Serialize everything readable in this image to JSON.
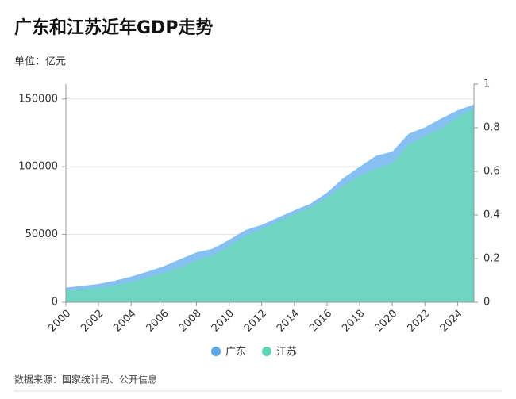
{
  "chart_data": {
    "type": "area",
    "title": "广东和江苏近年GDP走势",
    "subtitle": "单位：亿元",
    "source": "数据来源：国家统计局、公开信息",
    "x": [
      2000,
      2001,
      2002,
      2003,
      2004,
      2005,
      2006,
      2007,
      2008,
      2009,
      2010,
      2011,
      2012,
      2013,
      2014,
      2015,
      2016,
      2017,
      2018,
      2019,
      2020,
      2021,
      2022,
      2023,
      2024,
      2025
    ],
    "series": [
      {
        "name": "广东",
        "color": "#86c0f2",
        "legend_color": "#5aa7e8",
        "values": [
          10741,
          12039,
          13502,
          15845,
          18865,
          22557,
          26588,
          31777,
          36797,
          39483,
          46013,
          53210,
          57068,
          62475,
          67810,
          72813,
          80855,
          91649,
          99945,
          107987,
          111152,
          124370,
          129119,
          135673,
          141634,
          146000
        ]
      },
      {
        "name": "江苏",
        "color": "#6fd5c2",
        "legend_color": "#5fd3b3",
        "values": [
          8554,
          9457,
          10607,
          12443,
          15004,
          18306,
          21645,
          25741,
          30982,
          34457,
          41425,
          49110,
          54058,
          59753,
          65088,
          70116,
          77388,
          85870,
          93208,
          98656,
          102719,
          116364,
          122875,
          128222,
          137008,
          143000
        ]
      }
    ],
    "xlim": [
      2000,
      2025
    ],
    "xticks": [
      2000,
      2002,
      2004,
      2006,
      2008,
      2010,
      2012,
      2014,
      2016,
      2018,
      2020,
      2022,
      2024
    ],
    "ylim": [
      0,
      161000
    ],
    "yticks": [
      0,
      50000,
      100000,
      150000
    ],
    "y2lim": [
      0,
      1
    ],
    "y2ticks": [
      0,
      0.2,
      0.4,
      0.6,
      0.8,
      1
    ],
    "grid": true
  }
}
